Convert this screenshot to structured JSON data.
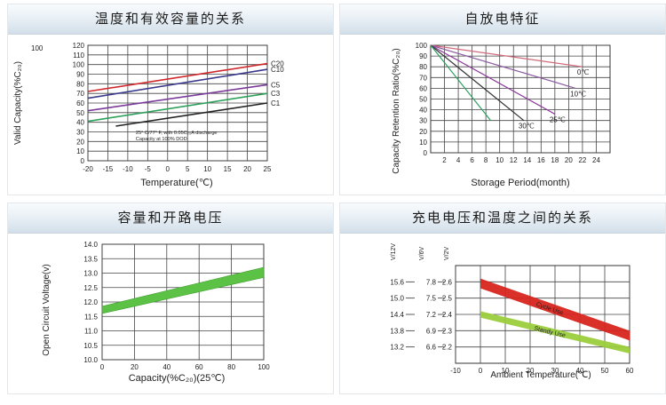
{
  "chart_data": [
    {
      "type": "line",
      "panel_title": "温度和有效容量的关系",
      "ylabel": "Valid Capacity(%C₂₀)",
      "xlabel": "Temperature(℃)",
      "y_extra_label": "100",
      "xlim": [
        -20,
        25
      ],
      "ylim": [
        0,
        120
      ],
      "xticks": [
        "-20",
        "-15",
        "-10",
        "-5",
        "0",
        "5",
        "10",
        "15",
        "20",
        "25"
      ],
      "yticks": [
        "0",
        "10",
        "20",
        "30",
        "40",
        "50",
        "60",
        "70",
        "80",
        "90",
        "100",
        "110",
        "120"
      ],
      "grid": true,
      "annotation": [
        "25° C/77° F, with 0.05C₂₀A discharge",
        "Capacity at 100% DOD"
      ],
      "series": [
        {
          "name": "C20",
          "color": "#d0282c",
          "x": [
            -20,
            25
          ],
          "y": [
            72,
            101
          ]
        },
        {
          "name": "C10",
          "color": "#3a3a8c",
          "x": [
            -20,
            25
          ],
          "y": [
            65,
            95
          ]
        },
        {
          "name": "C5",
          "color": "#7a3a9a",
          "x": [
            -20,
            25
          ],
          "y": [
            52,
            79
          ]
        },
        {
          "name": "C3",
          "color": "#2da05a",
          "x": [
            -20,
            25
          ],
          "y": [
            41,
            70
          ]
        },
        {
          "name": "C1",
          "color": "#222222",
          "x": [
            -13,
            25
          ],
          "y": [
            36,
            60
          ]
        }
      ]
    },
    {
      "type": "line",
      "panel_title": "自放电特征",
      "ylabel": "Capacity Retention Ratio(%C₂₀)",
      "xlabel": "Storage Period(month)",
      "xlim": [
        0,
        26
      ],
      "ylim": [
        0,
        100
      ],
      "xticks": [
        "2",
        "4",
        "6",
        "8",
        "10",
        "12",
        "14",
        "16",
        "18",
        "20",
        "22",
        "24"
      ],
      "yticks": [
        "0",
        "10",
        "20",
        "30",
        "40",
        "50",
        "60",
        "70",
        "80",
        "90",
        "100"
      ],
      "grid": true,
      "series": [
        {
          "name": "0℃",
          "color": "#d06a7a",
          "x": [
            0,
            22
          ],
          "y": [
            100,
            80
          ]
        },
        {
          "name": "10℃",
          "color": "#8a5aa0",
          "x": [
            0,
            21
          ],
          "y": [
            100,
            60
          ]
        },
        {
          "name": "25℃",
          "color": "#8c3a9a",
          "x": [
            0,
            18
          ],
          "y": [
            100,
            36
          ]
        },
        {
          "name": "30℃",
          "color": "#333333",
          "x": [
            0,
            13.5
          ],
          "y": [
            100,
            30
          ]
        },
        {
          "name": "",
          "color": "#2aa060",
          "x": [
            0,
            8.7
          ],
          "y": [
            100,
            30
          ]
        }
      ]
    },
    {
      "type": "area",
      "panel_title": "容量和开路电压",
      "ylabel": "Open Circuit Voltage(v)",
      "xlabel": "Capacity(%C₂₀)(25℃)",
      "xlim": [
        0,
        100
      ],
      "ylim": [
        10.0,
        14.0
      ],
      "xticks": [
        "0",
        "20",
        "40",
        "60",
        "80",
        "100"
      ],
      "yticks": [
        "10.0",
        "10.5",
        "11.0",
        "11.5",
        "12.0",
        "12.5",
        "13.0",
        "13.5",
        "14.0"
      ],
      "grid": true,
      "band": {
        "color": "#5cc245",
        "x": [
          0,
          100
        ],
        "upper": [
          11.85,
          13.2
        ],
        "lower": [
          11.6,
          12.85
        ]
      }
    },
    {
      "type": "area",
      "panel_title": "充电电压和温度之间的关系",
      "xlabel": "Ambient Temperature(℃)",
      "xlim": [
        -10,
        60
      ],
      "ylim": [
        2.1,
        2.7
      ],
      "xticks": [
        "-10",
        "0",
        "10",
        "20",
        "30",
        "40",
        "50",
        "60"
      ],
      "yticks": [
        "2.2",
        "2.3",
        "2.4",
        "2.5",
        "2.6"
      ],
      "y_axis_names": [
        "V/12V",
        "V/6V",
        "V/2V"
      ],
      "y_axis_12v": [
        "13.2",
        "13.8",
        "14.4",
        "15.0",
        "15.6"
      ],
      "y_axis_6v": [
        "6.6",
        "6.9",
        "7.2",
        "7.5",
        "7.8"
      ],
      "grid": true,
      "bands": [
        {
          "name": "Cycle Use",
          "color": "#d8251f",
          "x": [
            0,
            60
          ],
          "upper": [
            2.62,
            2.3
          ],
          "lower": [
            2.56,
            2.24
          ]
        },
        {
          "name": "Standy Use",
          "color": "#9ace3c",
          "x": [
            0,
            60
          ],
          "upper": [
            2.42,
            2.2
          ],
          "lower": [
            2.38,
            2.16
          ]
        }
      ]
    }
  ]
}
